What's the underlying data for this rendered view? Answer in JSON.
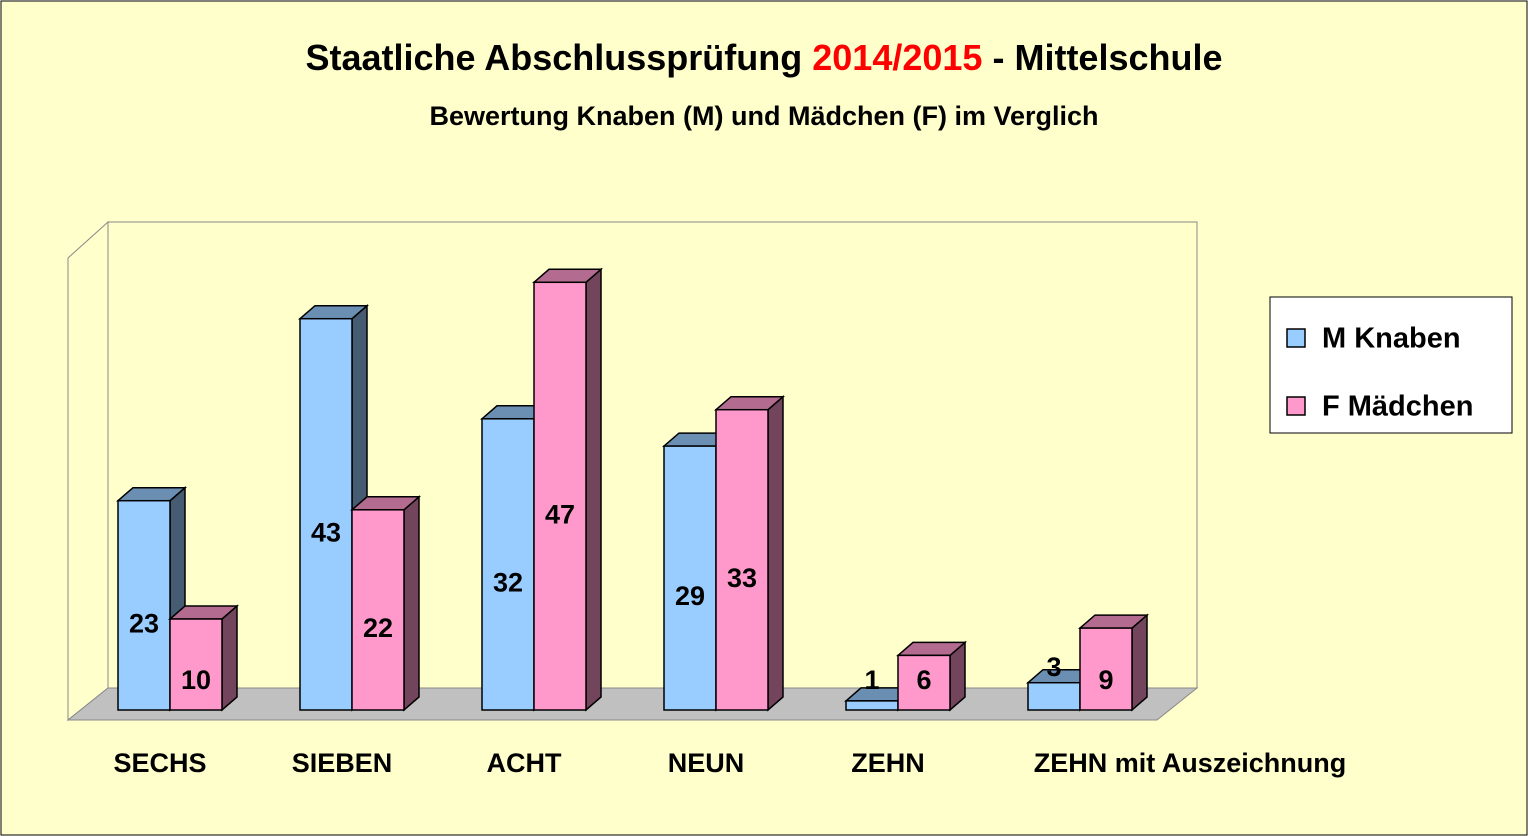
{
  "chart_data": {
    "type": "bar3d",
    "title": "Staatliche Abschlussprüfung",
    "title_highlight": "2014/2015",
    "title_end": "- Mittelschule",
    "subtitle": "Bewertung Knaben (M) und Mädchen (F) im Verglich",
    "categories": [
      "SECHS",
      "SIEBEN",
      "ACHT",
      "NEUN",
      "ZEHN",
      "ZEHN mit Auszeichnung"
    ],
    "series": [
      {
        "name": "M Knaben",
        "color": "#99ccff",
        "values": [
          23,
          43,
          32,
          29,
          1,
          3
        ]
      },
      {
        "name": "F Mädchen",
        "color": "#ff99cc",
        "values": [
          10,
          22,
          47,
          33,
          6,
          9
        ]
      }
    ],
    "ylim": [
      0,
      50
    ],
    "legend": "right"
  }
}
